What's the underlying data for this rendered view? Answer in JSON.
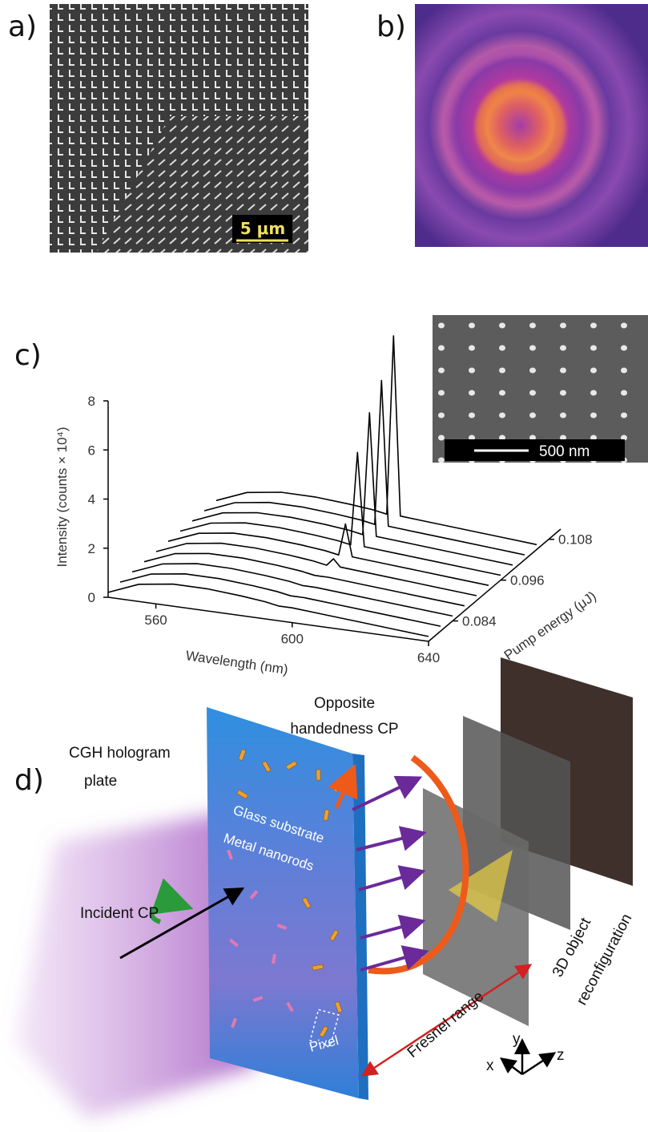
{
  "panels": {
    "a": {
      "label": "a)",
      "scale_bar": "5 μm"
    },
    "b": {
      "label": "b)"
    },
    "c": {
      "label": "c)",
      "inset_scale_bar": "500 nm"
    },
    "d": {
      "label": "d)",
      "opposite": [
        "Opposite",
        "handedness CP"
      ],
      "plate": [
        "CGH hologram",
        "plate"
      ],
      "glass": "Glass substrate",
      "nanorods": "Metal nanorods",
      "incident": "Incident CP",
      "pixel": "Pixel",
      "fresnel": "Fresnel range",
      "object": [
        "3D object",
        "reconfiguration"
      ],
      "axes": {
        "x": "x",
        "y": "y",
        "z": "z"
      }
    }
  },
  "chart_data": {
    "type": "waterfall",
    "x_label": "Wavelength (nm)",
    "y_label": "Intensity (counts × 10⁴)",
    "z_label": "Pump energy (μJ)",
    "x": [
      546,
      555,
      565,
      575,
      585,
      592,
      596,
      598,
      600,
      610,
      620,
      630,
      640
    ],
    "xlim": [
      546,
      640
    ],
    "xticks": [
      560,
      600,
      640
    ],
    "ylim": [
      0,
      8
    ],
    "yticks": [
      0,
      2,
      4,
      6,
      8
    ],
    "z": [
      0.078,
      0.081,
      0.084,
      0.087,
      0.09,
      0.093,
      0.096,
      0.099,
      0.102,
      0.105
    ],
    "zlim": [
      0.078,
      0.111
    ],
    "zticks": [
      0.084,
      0.096,
      0.108
    ],
    "color": "#000000",
    "series": [
      {
        "values": [
          0.2,
          0.7,
          0.9,
          0.9,
          0.8,
          0.7,
          0.6,
          0.6,
          0.6,
          0.5,
          0.4,
          0.3,
          0.2
        ]
      },
      {
        "values": [
          0.2,
          0.7,
          0.9,
          0.9,
          0.8,
          0.7,
          0.6,
          0.6,
          0.6,
          0.5,
          0.4,
          0.3,
          0.2
        ]
      },
      {
        "values": [
          0.2,
          0.7,
          0.9,
          0.9,
          0.8,
          0.7,
          0.6,
          0.6,
          0.6,
          0.5,
          0.4,
          0.3,
          0.2
        ]
      },
      {
        "values": [
          0.2,
          0.7,
          0.9,
          0.9,
          0.8,
          0.7,
          0.6,
          0.6,
          0.6,
          0.5,
          0.4,
          0.3,
          0.2
        ]
      },
      {
        "values": [
          0.2,
          0.7,
          0.9,
          0.9,
          0.8,
          0.7,
          0.6,
          0.9,
          0.6,
          0.5,
          0.4,
          0.3,
          0.2
        ]
      },
      {
        "values": [
          0.2,
          0.7,
          0.9,
          0.9,
          0.8,
          0.7,
          0.6,
          1.9,
          0.6,
          0.5,
          0.4,
          0.3,
          0.2
        ]
      },
      {
        "values": [
          0.2,
          0.7,
          0.9,
          0.9,
          0.8,
          0.7,
          0.6,
          4.4,
          0.6,
          0.5,
          0.4,
          0.3,
          0.2
        ]
      },
      {
        "values": [
          0.2,
          0.7,
          0.9,
          0.9,
          0.8,
          0.7,
          0.6,
          5.6,
          0.6,
          0.5,
          0.4,
          0.3,
          0.2
        ]
      },
      {
        "values": [
          0.2,
          0.7,
          0.9,
          0.9,
          0.8,
          0.7,
          0.6,
          6.5,
          0.6,
          0.5,
          0.4,
          0.3,
          0.2
        ]
      },
      {
        "values": [
          0.2,
          0.7,
          0.9,
          0.9,
          0.8,
          0.7,
          0.6,
          7.9,
          0.6,
          0.5,
          0.4,
          0.3,
          0.2
        ]
      }
    ]
  }
}
